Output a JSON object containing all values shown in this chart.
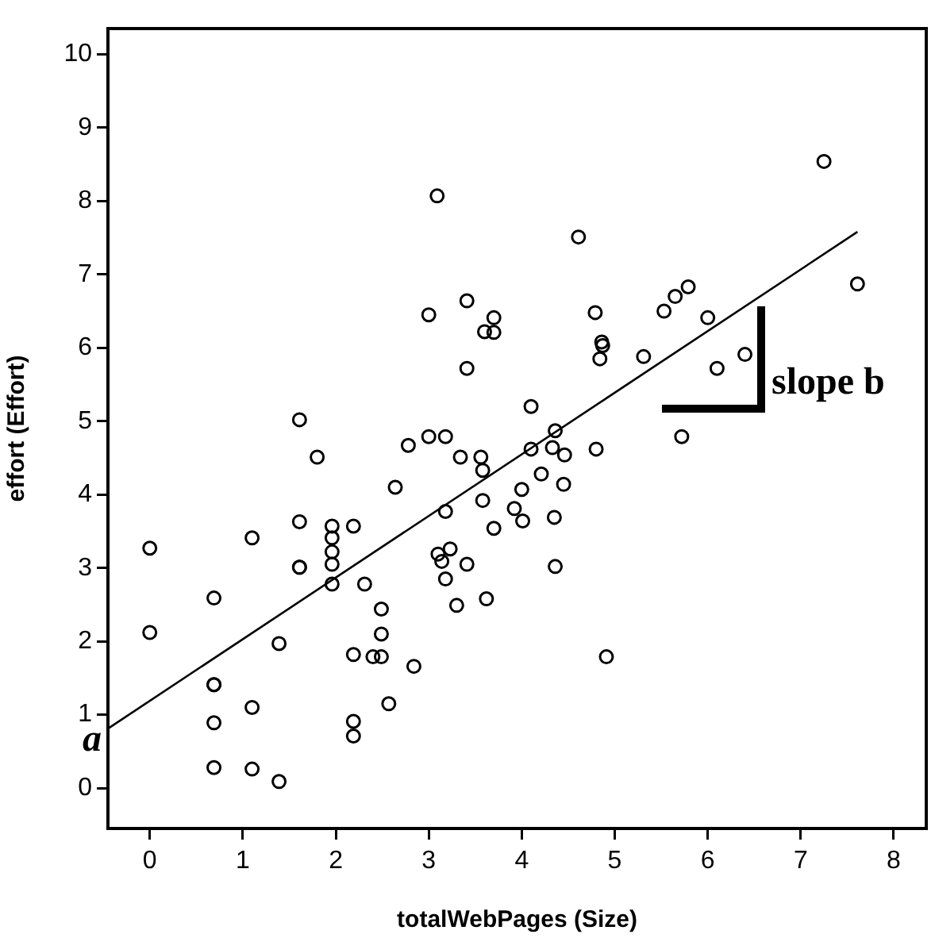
{
  "chart_data": {
    "type": "scatter",
    "xlabel": "totalWebPages (Size)",
    "ylabel": "effort (Effort)",
    "xlim": [
      -0.45,
      8.35
    ],
    "ylim": [
      -0.55,
      10.35
    ],
    "xticks": [
      0,
      1,
      2,
      3,
      4,
      5,
      6,
      7,
      8
    ],
    "yticks": [
      0,
      1,
      2,
      3,
      4,
      5,
      6,
      7,
      8,
      9,
      10
    ],
    "grid": false,
    "marker": "circle",
    "annotations": [
      "a",
      "slope b"
    ],
    "series": [
      {
        "color": "#000000",
        "x": [
          0,
          0,
          0.69,
          0.69,
          0.69,
          0.69,
          0.69,
          1.1,
          1.1,
          1.1,
          1.39,
          1.39,
          1.61,
          1.61,
          1.61,
          1.61,
          1.8,
          1.96,
          1.96,
          1.96,
          1.96,
          1.96,
          2.19,
          2.19,
          2.19,
          2.19,
          2.31,
          2.49,
          2.49,
          2.4,
          2.49,
          2.57,
          2.64,
          2.78,
          2.84,
          3.0,
          3.0,
          3.09,
          3.1,
          3.14,
          3.18,
          3.18,
          3.18,
          3.23,
          3.3,
          3.34,
          3.41,
          3.41,
          3.41,
          3.56,
          3.58,
          3.58,
          3.6,
          3.62,
          3.7,
          3.7,
          3.7,
          3.92,
          4.0,
          4.01,
          4.1,
          4.1,
          4.21,
          4.33,
          4.35,
          4.36,
          4.36,
          4.45,
          4.46,
          4.61,
          4.79,
          4.8,
          4.84,
          4.86,
          4.87,
          4.91,
          5.31,
          5.53,
          5.65,
          5.72,
          5.79,
          6.0,
          6.1,
          6.4,
          7.25,
          7.61
        ],
        "values": [
          3.27,
          2.12,
          2.59,
          1.41,
          1.41,
          0.89,
          0.28,
          3.41,
          1.1,
          0.26,
          1.97,
          0.09,
          5.02,
          3.63,
          3.01,
          3.01,
          4.51,
          3.57,
          3.41,
          3.22,
          3.05,
          2.78,
          3.57,
          1.82,
          0.91,
          0.71,
          2.78,
          2.44,
          2.1,
          1.79,
          1.79,
          1.15,
          4.1,
          4.67,
          1.66,
          4.79,
          6.45,
          8.07,
          3.19,
          3.09,
          4.79,
          3.77,
          2.85,
          3.26,
          2.49,
          4.51,
          6.64,
          5.72,
          3.05,
          4.51,
          4.33,
          3.92,
          6.22,
          2.58,
          6.41,
          6.21,
          3.54,
          3.81,
          4.07,
          3.64,
          5.2,
          4.62,
          4.28,
          4.64,
          3.69,
          4.87,
          3.02,
          4.14,
          4.54,
          7.51,
          6.48,
          4.62,
          5.85,
          6.08,
          6.03,
          1.79,
          5.88,
          6.5,
          6.7,
          4.79,
          6.83,
          6.41,
          5.72,
          5.91,
          8.54,
          6.87
        ]
      },
      {
        "type": "line",
        "marker": "none",
        "color": "#000000",
        "x": [
          -0.44,
          7.61
        ],
        "values": [
          0.82,
          7.58
        ]
      }
    ]
  }
}
